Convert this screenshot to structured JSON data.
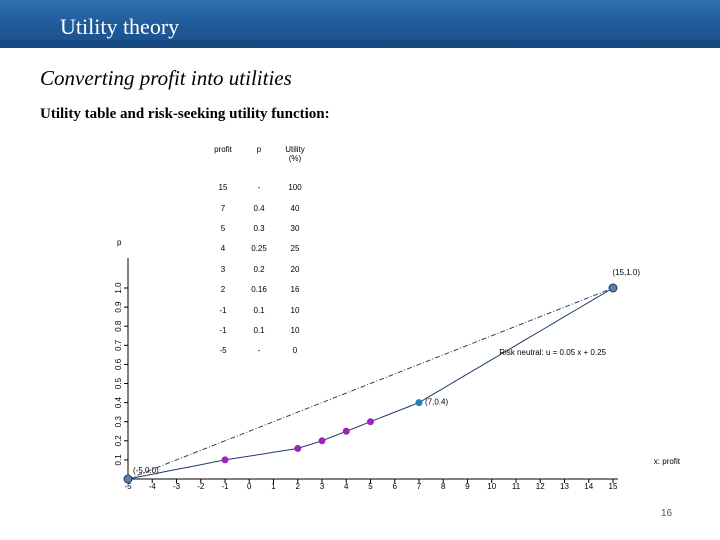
{
  "header": {
    "title": "Utility theory"
  },
  "heading": "Converting profit into utilities",
  "subheading": "Utility table and risk-seeking utility function:",
  "table": {
    "columns": [
      "profit",
      "p",
      "Utility (%)"
    ],
    "rows": [
      [
        "15",
        "-",
        "100"
      ],
      [
        "7",
        "0.4",
        "40"
      ],
      [
        "5",
        "0.3",
        "30"
      ],
      [
        "4",
        "0.25",
        "25"
      ],
      [
        "3",
        "0.2",
        "20"
      ],
      [
        "2",
        "0.16",
        "16"
      ],
      [
        "-1",
        "0.1",
        "10"
      ],
      [
        "-1",
        "0.1",
        "10"
      ],
      [
        "-5",
        "-",
        "0"
      ]
    ]
  },
  "chart_data": {
    "type": "scatter",
    "xlabel": "x: profit",
    "ylabel": "p",
    "x_ticks": [
      "-5",
      "-4",
      "-3",
      "-2",
      "-1",
      "0",
      "1",
      "2",
      "3",
      "4",
      "5",
      "6",
      "7",
      "8",
      "9",
      "10",
      "11",
      "12",
      "13",
      "14",
      "15"
    ],
    "y_ticks": [
      "0.1",
      "0.2",
      "0.3",
      "0.4",
      "0.5",
      "0.6",
      "0.7",
      "0.8",
      "0.9",
      "1.0"
    ],
    "xlim": [
      -5,
      15
    ],
    "ylim": [
      0,
      1
    ],
    "points": [
      {
        "x": -5,
        "y": 0.0,
        "color": "#5a7fa8"
      },
      {
        "x": -1,
        "y": 0.1,
        "color": "#a020c0"
      },
      {
        "x": 2,
        "y": 0.16,
        "color": "#a020c0"
      },
      {
        "x": 3,
        "y": 0.2,
        "color": "#a020c0"
      },
      {
        "x": 4,
        "y": 0.25,
        "color": "#a020c0"
      },
      {
        "x": 5,
        "y": 0.3,
        "color": "#a020c0"
      },
      {
        "x": 7,
        "y": 0.4,
        "color": "#2c7fb8"
      },
      {
        "x": 15,
        "y": 1.0,
        "color": "#5a7fa8"
      }
    ],
    "annotations": {
      "min_point": "(-5,0.0)",
      "max_point": "(15,1.0)",
      "mid_point": "(7,0.4)",
      "neutral_line": "Risk neutral: u = 0.05 x + 0.25"
    },
    "colors": {
      "curve": "#1f3d66",
      "neutral_line": "#3a3a6a",
      "axis": "#000000"
    }
  },
  "page_number": "16"
}
